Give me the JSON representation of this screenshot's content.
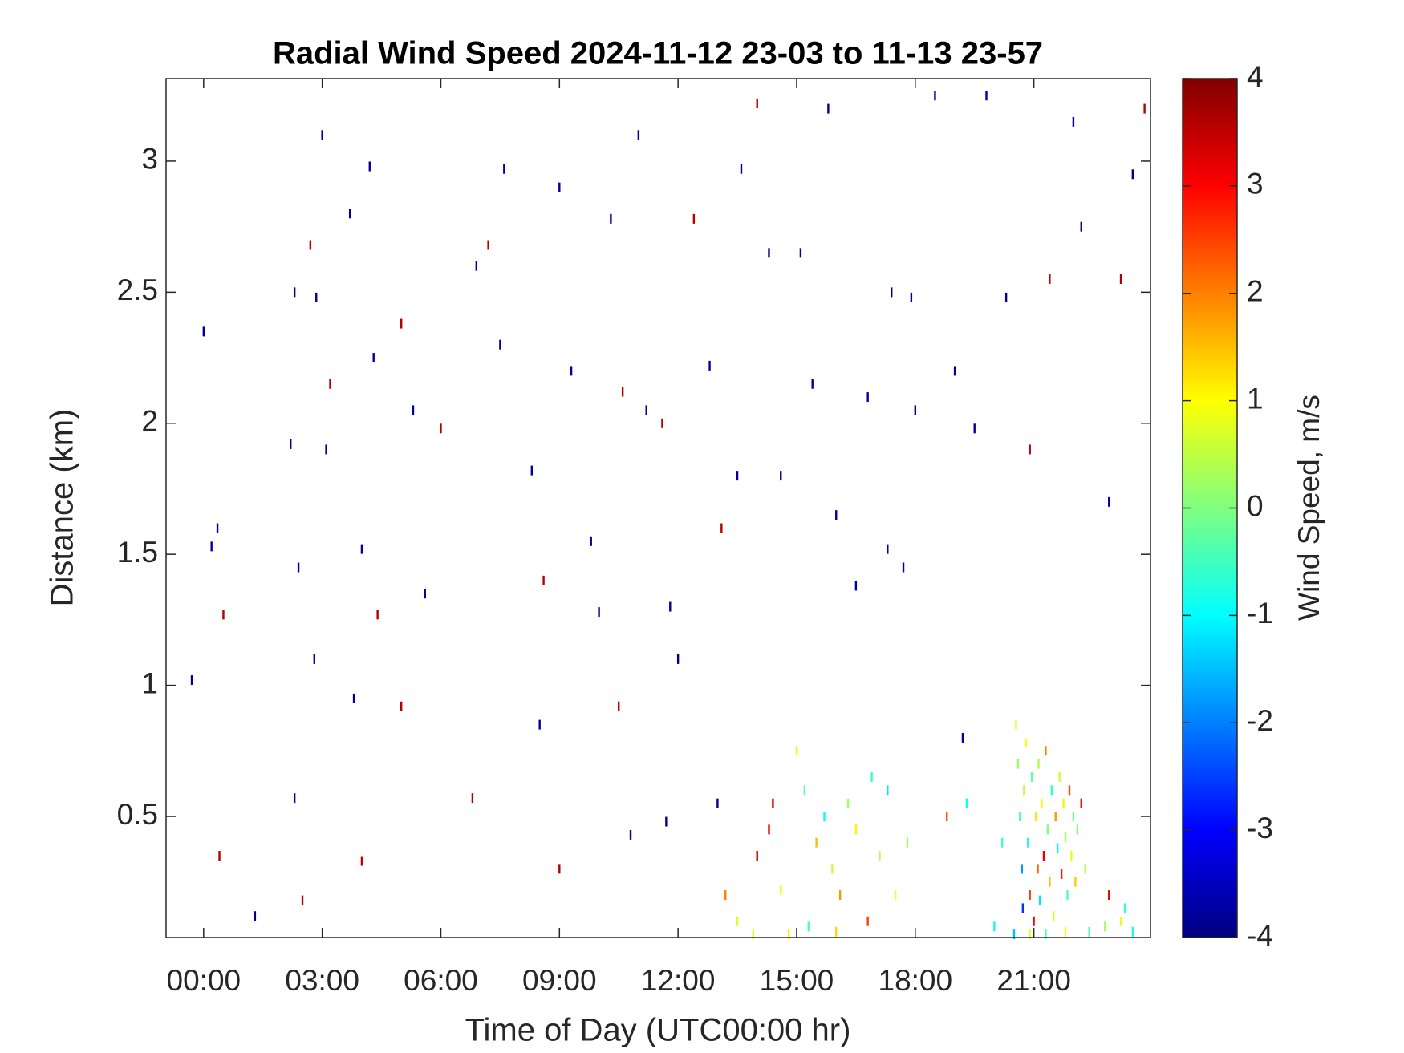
{
  "chart_data": {
    "type": "heatmap",
    "title": "Radial Wind Speed 2024-11-12 23-03 to 11-13 23-57",
    "x_label": "Time of Day (UTC00:00 hr)",
    "y_label": "Distance (km)",
    "colorbar_label": "Wind Speed, m/s",
    "colormap": "jet",
    "xlim": [
      -0.95,
      23.95
    ],
    "xticks": [
      {
        "value": 0,
        "label": "00:00"
      },
      {
        "value": 3,
        "label": "03:00"
      },
      {
        "value": 6,
        "label": "06:00"
      },
      {
        "value": 9,
        "label": "09:00"
      },
      {
        "value": 12,
        "label": "12:00"
      },
      {
        "value": 15,
        "label": "15:00"
      },
      {
        "value": 18,
        "label": "18:00"
      },
      {
        "value": 21,
        "label": "21:00"
      }
    ],
    "ylim": [
      0.038,
      3.315
    ],
    "yticks": [
      0.5,
      1,
      1.5,
      2,
      2.5,
      3
    ],
    "clim": [
      -4,
      4
    ],
    "cticks": [
      -4,
      -3,
      -2,
      -1,
      0,
      1,
      2,
      3,
      4
    ],
    "points": [
      {
        "x": -0.3,
        "y": 1.02,
        "value": -3.8
      },
      {
        "x": 0.0,
        "y": 2.35,
        "value": -3.8
      },
      {
        "x": 0.35,
        "y": 1.6,
        "value": -3.8
      },
      {
        "x": 0.5,
        "y": 1.27,
        "value": 3.6
      },
      {
        "x": 0.2,
        "y": 1.53,
        "value": -3.8
      },
      {
        "x": 2.2,
        "y": 1.92,
        "value": -3.8
      },
      {
        "x": 2.3,
        "y": 2.5,
        "value": -3.8
      },
      {
        "x": 2.4,
        "y": 1.45,
        "value": -3.8
      },
      {
        "x": 2.7,
        "y": 2.68,
        "value": 3.6
      },
      {
        "x": 2.85,
        "y": 2.48,
        "value": -3.8
      },
      {
        "x": 2.8,
        "y": 1.1,
        "value": -3.8
      },
      {
        "x": 3.0,
        "y": 3.1,
        "value": -3.8
      },
      {
        "x": 3.1,
        "y": 1.9,
        "value": -3.8
      },
      {
        "x": 3.2,
        "y": 2.15,
        "value": 3.6
      },
      {
        "x": 3.7,
        "y": 2.8,
        "value": -3.8
      },
      {
        "x": 3.8,
        "y": 0.95,
        "value": -3.8
      },
      {
        "x": 4.0,
        "y": 1.52,
        "value": -3.8
      },
      {
        "x": 4.2,
        "y": 2.98,
        "value": -3.8
      },
      {
        "x": 4.3,
        "y": 2.25,
        "value": -3.8
      },
      {
        "x": 4.4,
        "y": 1.27,
        "value": 3.6
      },
      {
        "x": 5.0,
        "y": 2.38,
        "value": 3.6
      },
      {
        "x": 5.3,
        "y": 2.05,
        "value": -3.8
      },
      {
        "x": 5.6,
        "y": 1.35,
        "value": -3.8
      },
      {
        "x": 6.0,
        "y": 1.98,
        "value": 3.6
      },
      {
        "x": 6.9,
        "y": 2.6,
        "value": -3.8
      },
      {
        "x": 7.2,
        "y": 2.68,
        "value": 3.6
      },
      {
        "x": 7.5,
        "y": 2.3,
        "value": -3.8
      },
      {
        "x": 7.6,
        "y": 2.97,
        "value": -3.8
      },
      {
        "x": 8.3,
        "y": 1.82,
        "value": -3.8
      },
      {
        "x": 8.6,
        "y": 1.4,
        "value": 3.6
      },
      {
        "x": 9.0,
        "y": 2.9,
        "value": -3.8
      },
      {
        "x": 9.3,
        "y": 2.2,
        "value": -3.8
      },
      {
        "x": 9.8,
        "y": 1.55,
        "value": -3.8
      },
      {
        "x": 10.0,
        "y": 1.28,
        "value": -3.8
      },
      {
        "x": 10.3,
        "y": 2.78,
        "value": -3.8
      },
      {
        "x": 10.6,
        "y": 2.12,
        "value": 3.6
      },
      {
        "x": 11.0,
        "y": 3.1,
        "value": -3.8
      },
      {
        "x": 11.2,
        "y": 2.05,
        "value": -3.8
      },
      {
        "x": 11.6,
        "y": 2.0,
        "value": 3.6
      },
      {
        "x": 11.8,
        "y": 1.3,
        "value": -3.8
      },
      {
        "x": 12.0,
        "y": 1.1,
        "value": -3.8
      },
      {
        "x": 12.4,
        "y": 2.78,
        "value": 3.6
      },
      {
        "x": 12.8,
        "y": 2.22,
        "value": -3.8
      },
      {
        "x": 13.1,
        "y": 1.6,
        "value": 3.6
      },
      {
        "x": 13.5,
        "y": 1.8,
        "value": -3.8
      },
      {
        "x": 13.6,
        "y": 2.97,
        "value": -3.8
      },
      {
        "x": 14.0,
        "y": 3.22,
        "value": 3.6
      },
      {
        "x": 14.3,
        "y": 2.65,
        "value": -3.8
      },
      {
        "x": 14.6,
        "y": 1.8,
        "value": -3.8
      },
      {
        "x": 15.1,
        "y": 2.65,
        "value": -3.8
      },
      {
        "x": 15.4,
        "y": 2.15,
        "value": -3.8
      },
      {
        "x": 15.8,
        "y": 3.2,
        "value": -3.8
      },
      {
        "x": 16.0,
        "y": 1.65,
        "value": -3.8
      },
      {
        "x": 16.5,
        "y": 1.38,
        "value": -3.8
      },
      {
        "x": 16.8,
        "y": 2.1,
        "value": -3.8
      },
      {
        "x": 17.3,
        "y": 1.52,
        "value": -3.8
      },
      {
        "x": 17.4,
        "y": 2.5,
        "value": -3.8
      },
      {
        "x": 17.7,
        "y": 1.45,
        "value": -3.8
      },
      {
        "x": 17.9,
        "y": 2.48,
        "value": -3.8
      },
      {
        "x": 18.0,
        "y": 2.05,
        "value": -3.8
      },
      {
        "x": 18.5,
        "y": 3.25,
        "value": -3.8
      },
      {
        "x": 19.0,
        "y": 2.2,
        "value": -3.8
      },
      {
        "x": 19.2,
        "y": 0.8,
        "value": -3.8
      },
      {
        "x": 19.5,
        "y": 1.98,
        "value": -3.8
      },
      {
        "x": 19.8,
        "y": 3.25,
        "value": -3.8
      },
      {
        "x": 20.3,
        "y": 2.48,
        "value": -3.8
      },
      {
        "x": 20.9,
        "y": 1.9,
        "value": 3.6
      },
      {
        "x": 21.4,
        "y": 2.55,
        "value": 3.6
      },
      {
        "x": 22.0,
        "y": 3.15,
        "value": -3.8
      },
      {
        "x": 22.2,
        "y": 2.75,
        "value": -3.8
      },
      {
        "x": 22.9,
        "y": 1.7,
        "value": -3.8
      },
      {
        "x": 23.2,
        "y": 2.55,
        "value": 3.6
      },
      {
        "x": 23.5,
        "y": 2.95,
        "value": -3.8
      },
      {
        "x": 23.8,
        "y": 3.2,
        "value": 3.6
      },
      {
        "x": 13.0,
        "y": 0.55,
        "value": -3.8
      },
      {
        "x": 11.7,
        "y": 0.48,
        "value": -3.8
      },
      {
        "x": 10.8,
        "y": 0.43,
        "value": -3.8
      },
      {
        "x": 9.0,
        "y": 0.3,
        "value": 3.6
      },
      {
        "x": 2.5,
        "y": 0.18,
        "value": 3.6
      },
      {
        "x": 1.3,
        "y": 0.12,
        "value": -3.8
      },
      {
        "x": 4.0,
        "y": 0.33,
        "value": 3.6
      },
      {
        "x": 0.4,
        "y": 0.35,
        "value": 3.6
      },
      {
        "x": 2.3,
        "y": 0.57,
        "value": -3.8
      },
      {
        "x": 6.8,
        "y": 0.57,
        "value": 3.6
      },
      {
        "x": 5.0,
        "y": 0.92,
        "value": 3.6
      },
      {
        "x": 8.5,
        "y": 0.85,
        "value": -3.8
      },
      {
        "x": 10.5,
        "y": 0.92,
        "value": 3.6
      },
      {
        "x": 20.55,
        "y": 0.85,
        "value": 0.8
      },
      {
        "x": 20.6,
        "y": 0.7,
        "value": 0.2
      },
      {
        "x": 20.65,
        "y": 0.5,
        "value": -0.5
      },
      {
        "x": 20.7,
        "y": 0.3,
        "value": -1.8
      },
      {
        "x": 20.72,
        "y": 0.15,
        "value": -2.6
      },
      {
        "x": 20.75,
        "y": 0.6,
        "value": 0.5
      },
      {
        "x": 20.8,
        "y": 0.78,
        "value": 1.0
      },
      {
        "x": 20.85,
        "y": 0.4,
        "value": -0.8
      },
      {
        "x": 20.9,
        "y": 0.2,
        "value": 2.5
      },
      {
        "x": 20.95,
        "y": 0.65,
        "value": -0.3
      },
      {
        "x": 21.0,
        "y": 0.1,
        "value": 3.0
      },
      {
        "x": 21.05,
        "y": 0.5,
        "value": 1.2
      },
      {
        "x": 21.1,
        "y": 0.3,
        "value": 2.2
      },
      {
        "x": 21.12,
        "y": 0.7,
        "value": 0.4
      },
      {
        "x": 21.15,
        "y": 0.18,
        "value": -1.2
      },
      {
        "x": 21.2,
        "y": 0.55,
        "value": 0.9
      },
      {
        "x": 21.25,
        "y": 0.35,
        "value": 3.2
      },
      {
        "x": 21.3,
        "y": 0.75,
        "value": 2.0
      },
      {
        "x": 21.35,
        "y": 0.45,
        "value": 0.0
      },
      {
        "x": 21.4,
        "y": 0.25,
        "value": 1.5
      },
      {
        "x": 21.45,
        "y": 0.6,
        "value": -0.6
      },
      {
        "x": 21.5,
        "y": 0.12,
        "value": 0.7
      },
      {
        "x": 21.55,
        "y": 0.5,
        "value": 1.8
      },
      {
        "x": 21.6,
        "y": 0.38,
        "value": -1.0
      },
      {
        "x": 21.65,
        "y": 0.65,
        "value": 0.6
      },
      {
        "x": 21.7,
        "y": 0.28,
        "value": 2.8
      },
      {
        "x": 21.75,
        "y": 0.55,
        "value": 1.1
      },
      {
        "x": 21.8,
        "y": 0.42,
        "value": 0.3
      },
      {
        "x": 21.85,
        "y": 0.2,
        "value": -0.4
      },
      {
        "x": 21.9,
        "y": 0.6,
        "value": 2.4
      },
      {
        "x": 21.95,
        "y": 0.35,
        "value": 0.8
      },
      {
        "x": 22.0,
        "y": 0.5,
        "value": -0.2
      },
      {
        "x": 22.05,
        "y": 0.25,
        "value": 1.4
      },
      {
        "x": 22.1,
        "y": 0.45,
        "value": 0.1
      },
      {
        "x": 22.2,
        "y": 0.55,
        "value": 3.0
      },
      {
        "x": 22.3,
        "y": 0.3,
        "value": 0.5
      },
      {
        "x": 20.5,
        "y": 0.05,
        "value": -1.5
      },
      {
        "x": 20.9,
        "y": 0.05,
        "value": 0.9
      },
      {
        "x": 21.3,
        "y": 0.05,
        "value": -0.5
      },
      {
        "x": 21.8,
        "y": 0.06,
        "value": 1.0
      },
      {
        "x": 22.4,
        "y": 0.06,
        "value": -0.3
      },
      {
        "x": 22.8,
        "y": 0.08,
        "value": 0.3
      },
      {
        "x": 23.2,
        "y": 0.1,
        "value": 0.8
      },
      {
        "x": 23.5,
        "y": 0.06,
        "value": -0.8
      },
      {
        "x": 22.9,
        "y": 0.2,
        "value": 3.2
      },
      {
        "x": 23.3,
        "y": 0.15,
        "value": -0.6
      },
      {
        "x": 20.2,
        "y": 0.4,
        "value": -0.5
      },
      {
        "x": 20.0,
        "y": 0.08,
        "value": -0.9
      },
      {
        "x": 13.2,
        "y": 0.2,
        "value": 2.0
      },
      {
        "x": 13.5,
        "y": 0.1,
        "value": 0.7
      },
      {
        "x": 14.0,
        "y": 0.35,
        "value": 3.5
      },
      {
        "x": 14.3,
        "y": 0.45,
        "value": 3.2
      },
      {
        "x": 14.4,
        "y": 0.55,
        "value": 3.3
      },
      {
        "x": 14.6,
        "y": 0.22,
        "value": 0.9
      },
      {
        "x": 14.8,
        "y": 0.05,
        "value": 1.2
      },
      {
        "x": 15.0,
        "y": 0.75,
        "value": 0.8
      },
      {
        "x": 15.2,
        "y": 0.6,
        "value": -0.3
      },
      {
        "x": 15.5,
        "y": 0.4,
        "value": 1.5
      },
      {
        "x": 15.7,
        "y": 0.5,
        "value": -1.0
      },
      {
        "x": 15.9,
        "y": 0.3,
        "value": 0.6
      },
      {
        "x": 16.1,
        "y": 0.2,
        "value": 1.8
      },
      {
        "x": 16.3,
        "y": 0.55,
        "value": 0.3
      },
      {
        "x": 16.5,
        "y": 0.45,
        "value": 1.1
      },
      {
        "x": 16.8,
        "y": 0.1,
        "value": 2.5
      },
      {
        "x": 16.9,
        "y": 0.65,
        "value": -0.6
      },
      {
        "x": 17.1,
        "y": 0.35,
        "value": 0.4
      },
      {
        "x": 17.3,
        "y": 0.6,
        "value": -1.2
      },
      {
        "x": 17.5,
        "y": 0.2,
        "value": 1.0
      },
      {
        "x": 17.8,
        "y": 0.4,
        "value": 0.2
      },
      {
        "x": 13.9,
        "y": 0.05,
        "value": 0.8
      },
      {
        "x": 15.3,
        "y": 0.08,
        "value": -0.4
      },
      {
        "x": 16.0,
        "y": 0.06,
        "value": 1.3
      },
      {
        "x": 18.8,
        "y": 0.5,
        "value": 2.3
      },
      {
        "x": 19.3,
        "y": 0.55,
        "value": -0.9
      }
    ]
  }
}
